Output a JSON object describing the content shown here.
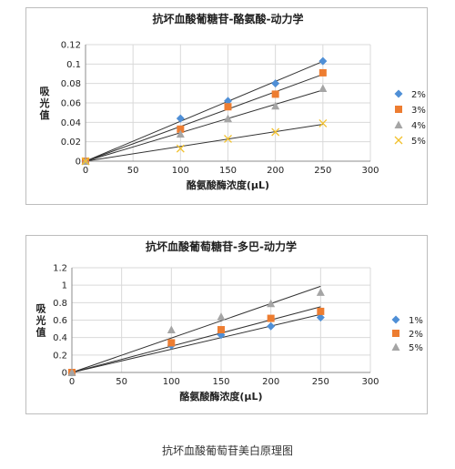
{
  "chart_data": [
    {
      "type": "scatter",
      "title": "抗坏血酸葡糖苷-酪氨酸-动力学",
      "xlabel": "酪氨酸酶浓度(μL)",
      "ylabel": "吸光值",
      "xlim": [
        0,
        300
      ],
      "ylim": [
        0,
        0.12
      ],
      "xticks": [
        0,
        50,
        100,
        150,
        200,
        250,
        300
      ],
      "yticks": [
        0,
        0.02,
        0.04,
        0.06,
        0.08,
        0.1,
        0.12
      ],
      "legend_position": "right",
      "grid": true,
      "trendlines": true,
      "series": [
        {
          "name": "2%",
          "marker": "diamond",
          "color": "#4f8fd6",
          "x": [
            0,
            100,
            150,
            200,
            250
          ],
          "y": [
            0,
            0.044,
            0.062,
            0.08,
            0.103
          ]
        },
        {
          "name": "3%",
          "marker": "square",
          "color": "#ed7d31",
          "x": [
            0,
            100,
            150,
            200,
            250
          ],
          "y": [
            0,
            0.033,
            0.056,
            0.069,
            0.091
          ]
        },
        {
          "name": "4%",
          "marker": "triangle",
          "color": "#a5a5a5",
          "x": [
            0,
            100,
            150,
            200,
            250
          ],
          "y": [
            0,
            0.028,
            0.044,
            0.057,
            0.075
          ]
        },
        {
          "name": "5%",
          "marker": "x",
          "color": "#f2c12e",
          "x": [
            0,
            100,
            150,
            200,
            250
          ],
          "y": [
            0,
            0.013,
            0.023,
            0.03,
            0.039
          ]
        }
      ]
    },
    {
      "type": "scatter",
      "title": "抗坏血酸葡萄糖苷-多巴-动力学",
      "xlabel": "酪氨酸酶浓度(μL)",
      "ylabel": "吸光值",
      "xlim": [
        0,
        300
      ],
      "ylim": [
        0,
        1.2
      ],
      "xticks": [
        0,
        50,
        100,
        150,
        200,
        250,
        300
      ],
      "yticks": [
        0,
        0.2,
        0.4,
        0.6,
        0.8,
        1,
        1.2
      ],
      "legend_position": "right",
      "grid": true,
      "trendlines": true,
      "series": [
        {
          "name": "1%",
          "marker": "diamond",
          "color": "#4f8fd6",
          "x": [
            0,
            100,
            150,
            200,
            250
          ],
          "y": [
            0,
            0.31,
            0.43,
            0.53,
            0.63
          ]
        },
        {
          "name": "2%",
          "marker": "square",
          "color": "#ed7d31",
          "x": [
            0,
            100,
            150,
            200,
            250
          ],
          "y": [
            0,
            0.34,
            0.49,
            0.62,
            0.7
          ]
        },
        {
          "name": "5%",
          "marker": "triangle",
          "color": "#a5a5a5",
          "x": [
            0,
            100,
            150,
            200,
            250
          ],
          "y": [
            0,
            0.49,
            0.64,
            0.79,
            0.92
          ]
        }
      ]
    }
  ],
  "caption": "抗坏血酸葡萄苷美白原理图"
}
